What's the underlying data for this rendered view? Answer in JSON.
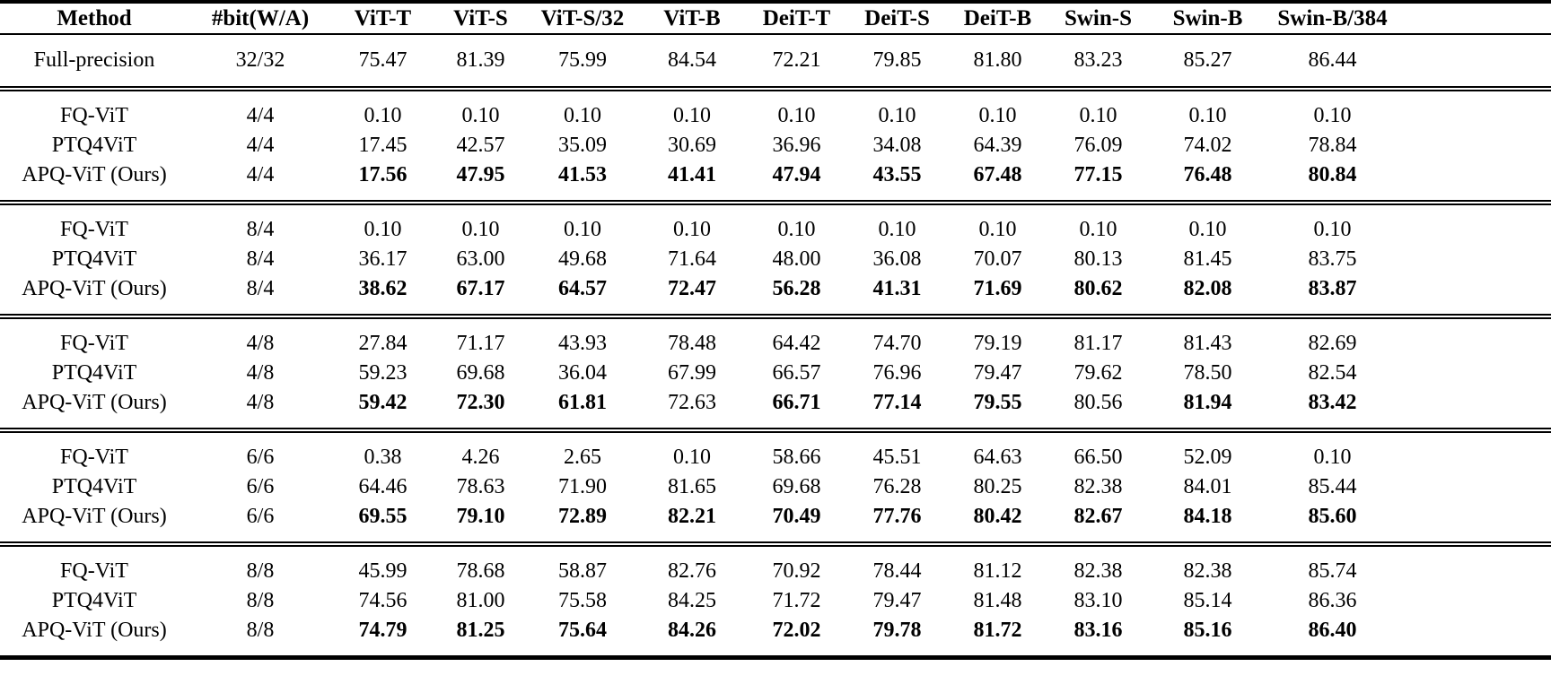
{
  "table": {
    "columns": [
      "Method",
      "#bit(W/A)",
      "ViT-T",
      "ViT-S",
      "ViT-S/32",
      "ViT-B",
      "DeiT-T",
      "DeiT-S",
      "DeiT-B",
      "Swin-S",
      "Swin-B",
      "Swin-B/384"
    ],
    "baseline_row": {
      "method": "Full-precision",
      "bits": "32/32",
      "values": [
        "75.47",
        "81.39",
        "75.99",
        "84.54",
        "72.21",
        "79.85",
        "81.80",
        "83.23",
        "85.27",
        "86.44"
      ],
      "bold": [
        0,
        0,
        0,
        0,
        0,
        0,
        0,
        0,
        0,
        0
      ]
    },
    "groups": [
      {
        "bits": "4/4",
        "rows": [
          {
            "method": "FQ-ViT",
            "bits": "4/4",
            "values": [
              "0.10",
              "0.10",
              "0.10",
              "0.10",
              "0.10",
              "0.10",
              "0.10",
              "0.10",
              "0.10",
              "0.10"
            ],
            "bold": [
              0,
              0,
              0,
              0,
              0,
              0,
              0,
              0,
              0,
              0
            ]
          },
          {
            "method": "PTQ4ViT",
            "bits": "4/4",
            "values": [
              "17.45",
              "42.57",
              "35.09",
              "30.69",
              "36.96",
              "34.08",
              "64.39",
              "76.09",
              "74.02",
              "78.84"
            ],
            "bold": [
              0,
              0,
              0,
              0,
              0,
              0,
              0,
              0,
              0,
              0
            ]
          },
          {
            "method": "APQ-ViT (Ours)",
            "bits": "4/4",
            "values": [
              "17.56",
              "47.95",
              "41.53",
              "41.41",
              "47.94",
              "43.55",
              "67.48",
              "77.15",
              "76.48",
              "80.84"
            ],
            "bold": [
              1,
              1,
              1,
              1,
              1,
              1,
              1,
              1,
              1,
              1
            ]
          }
        ]
      },
      {
        "bits": "8/4",
        "rows": [
          {
            "method": "FQ-ViT",
            "bits": "8/4",
            "values": [
              "0.10",
              "0.10",
              "0.10",
              "0.10",
              "0.10",
              "0.10",
              "0.10",
              "0.10",
              "0.10",
              "0.10"
            ],
            "bold": [
              0,
              0,
              0,
              0,
              0,
              0,
              0,
              0,
              0,
              0
            ]
          },
          {
            "method": "PTQ4ViT",
            "bits": "8/4",
            "values": [
              "36.17",
              "63.00",
              "49.68",
              "71.64",
              "48.00",
              "36.08",
              "70.07",
              "80.13",
              "81.45",
              "83.75"
            ],
            "bold": [
              0,
              0,
              0,
              0,
              0,
              0,
              0,
              0,
              0,
              0
            ]
          },
          {
            "method": "APQ-ViT (Ours)",
            "bits": "8/4",
            "values": [
              "38.62",
              "67.17",
              "64.57",
              "72.47",
              "56.28",
              "41.31",
              "71.69",
              "80.62",
              "82.08",
              "83.87"
            ],
            "bold": [
              1,
              1,
              1,
              1,
              1,
              1,
              1,
              1,
              1,
              1
            ]
          }
        ]
      },
      {
        "bits": "4/8",
        "rows": [
          {
            "method": "FQ-ViT",
            "bits": "4/8",
            "values": [
              "27.84",
              "71.17",
              "43.93",
              "78.48",
              "64.42",
              "74.70",
              "79.19",
              "81.17",
              "81.43",
              "82.69"
            ],
            "bold": [
              0,
              0,
              0,
              0,
              0,
              0,
              0,
              0,
              0,
              0
            ]
          },
          {
            "method": "PTQ4ViT",
            "bits": "4/8",
            "values": [
              "59.23",
              "69.68",
              "36.04",
              "67.99",
              "66.57",
              "76.96",
              "79.47",
              "79.62",
              "78.50",
              "82.54"
            ],
            "bold": [
              0,
              0,
              0,
              0,
              0,
              0,
              0,
              0,
              0,
              0
            ]
          },
          {
            "method": "APQ-ViT (Ours)",
            "bits": "4/8",
            "values": [
              "59.42",
              "72.30",
              "61.81",
              "72.63",
              "66.71",
              "77.14",
              "79.55",
              "80.56",
              "81.94",
              "83.42"
            ],
            "bold": [
              1,
              1,
              1,
              0,
              1,
              1,
              1,
              0,
              1,
              1
            ]
          }
        ]
      },
      {
        "bits": "6/6",
        "rows": [
          {
            "method": "FQ-ViT",
            "bits": "6/6",
            "values": [
              "0.38",
              "4.26",
              "2.65",
              "0.10",
              "58.66",
              "45.51",
              "64.63",
              "66.50",
              "52.09",
              "0.10"
            ],
            "bold": [
              0,
              0,
              0,
              0,
              0,
              0,
              0,
              0,
              0,
              0
            ]
          },
          {
            "method": "PTQ4ViT",
            "bits": "6/6",
            "values": [
              "64.46",
              "78.63",
              "71.90",
              "81.65",
              "69.68",
              "76.28",
              "80.25",
              "82.38",
              "84.01",
              "85.44"
            ],
            "bold": [
              0,
              0,
              0,
              0,
              0,
              0,
              0,
              0,
              0,
              0
            ]
          },
          {
            "method": "APQ-ViT (Ours)",
            "bits": "6/6",
            "values": [
              "69.55",
              "79.10",
              "72.89",
              "82.21",
              "70.49",
              "77.76",
              "80.42",
              "82.67",
              "84.18",
              "85.60"
            ],
            "bold": [
              1,
              1,
              1,
              1,
              1,
              1,
              1,
              1,
              1,
              1
            ]
          }
        ]
      },
      {
        "bits": "8/8",
        "rows": [
          {
            "method": "FQ-ViT",
            "bits": "8/8",
            "values": [
              "45.99",
              "78.68",
              "58.87",
              "82.76",
              "70.92",
              "78.44",
              "81.12",
              "82.38",
              "82.38",
              "85.74"
            ],
            "bold": [
              0,
              0,
              0,
              0,
              0,
              0,
              0,
              0,
              0,
              0
            ]
          },
          {
            "method": "PTQ4ViT",
            "bits": "8/8",
            "values": [
              "74.56",
              "81.00",
              "75.58",
              "84.25",
              "71.72",
              "79.47",
              "81.48",
              "83.10",
              "85.14",
              "86.36"
            ],
            "bold": [
              0,
              0,
              0,
              0,
              0,
              0,
              0,
              0,
              0,
              0
            ]
          },
          {
            "method": "APQ-ViT (Ours)",
            "bits": "8/8",
            "values": [
              "74.79",
              "81.25",
              "75.64",
              "84.26",
              "72.02",
              "79.78",
              "81.72",
              "83.16",
              "85.16",
              "86.40"
            ],
            "bold": [
              1,
              1,
              1,
              1,
              1,
              1,
              1,
              1,
              1,
              1
            ]
          }
        ]
      }
    ]
  }
}
